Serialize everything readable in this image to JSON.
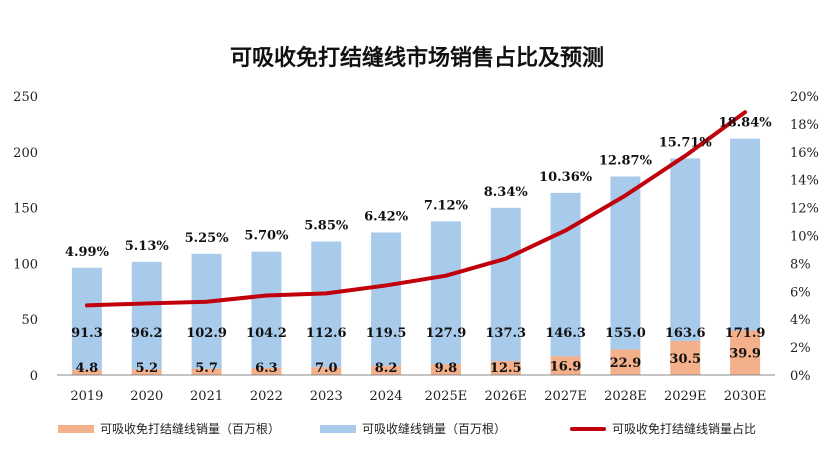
{
  "title": "可吸收免打结缝线市场销售占比及预测",
  "colors": {
    "exempt": "#F4B08A",
    "absorb": "#A9CBEB",
    "ratio": "#C0000B"
  },
  "chart_data": {
    "type": "bar",
    "stacked": true,
    "categories": [
      "2019",
      "2020",
      "2021",
      "2022",
      "2023",
      "2024",
      "2025E",
      "2026E",
      "2027E",
      "2028E",
      "2029E",
      "2030E"
    ],
    "series": [
      {
        "name": "可吸收免打结缝线销量（百万根）",
        "values": [
          4.8,
          5.2,
          5.7,
          6.3,
          7.0,
          8.2,
          9.8,
          12.5,
          16.9,
          22.9,
          30.5,
          39.9
        ],
        "labels": [
          "4.8",
          "5.2",
          "5.7",
          "6.3",
          "7.0",
          "8.2",
          "9.8",
          "12.5",
          "16.9",
          "22.9",
          "30.5",
          "39.9"
        ]
      },
      {
        "name": "可吸收缝线销量（百万根）",
        "values": [
          91.3,
          96.2,
          102.9,
          104.2,
          112.6,
          119.5,
          127.9,
          137.3,
          146.3,
          155.0,
          163.6,
          171.9
        ],
        "labels": [
          "91.3",
          "96.2",
          "102.9",
          "104.2",
          "112.6",
          "119.5",
          "127.9",
          "137.3",
          "146.3",
          "155.0",
          "163.6",
          "171.9"
        ]
      }
    ],
    "line": {
      "name": "可吸收免打结缝线销量占比",
      "axis": "right",
      "values": [
        4.99,
        5.13,
        5.25,
        5.7,
        5.85,
        6.42,
        7.12,
        8.34,
        10.36,
        12.87,
        15.71,
        18.84
      ],
      "labels": [
        "4.99%",
        "5.13%",
        "5.25%",
        "5.70%",
        "5.85%",
        "6.42%",
        "7.12%",
        "8.34%",
        "10.36%",
        "12.87%",
        "15.71%",
        "18.84%"
      ]
    },
    "y_left": {
      "ylim": [
        0,
        250
      ],
      "ticks": [
        "0",
        "50",
        "100",
        "150",
        "200",
        "250"
      ]
    },
    "y_right": {
      "ylim": [
        0,
        20
      ],
      "ticks": [
        "0%",
        "2%",
        "4%",
        "6%",
        "8%",
        "10%",
        "12%",
        "14%",
        "16%",
        "18%",
        "20%"
      ]
    },
    "grid": false,
    "legend_position": "bottom"
  }
}
